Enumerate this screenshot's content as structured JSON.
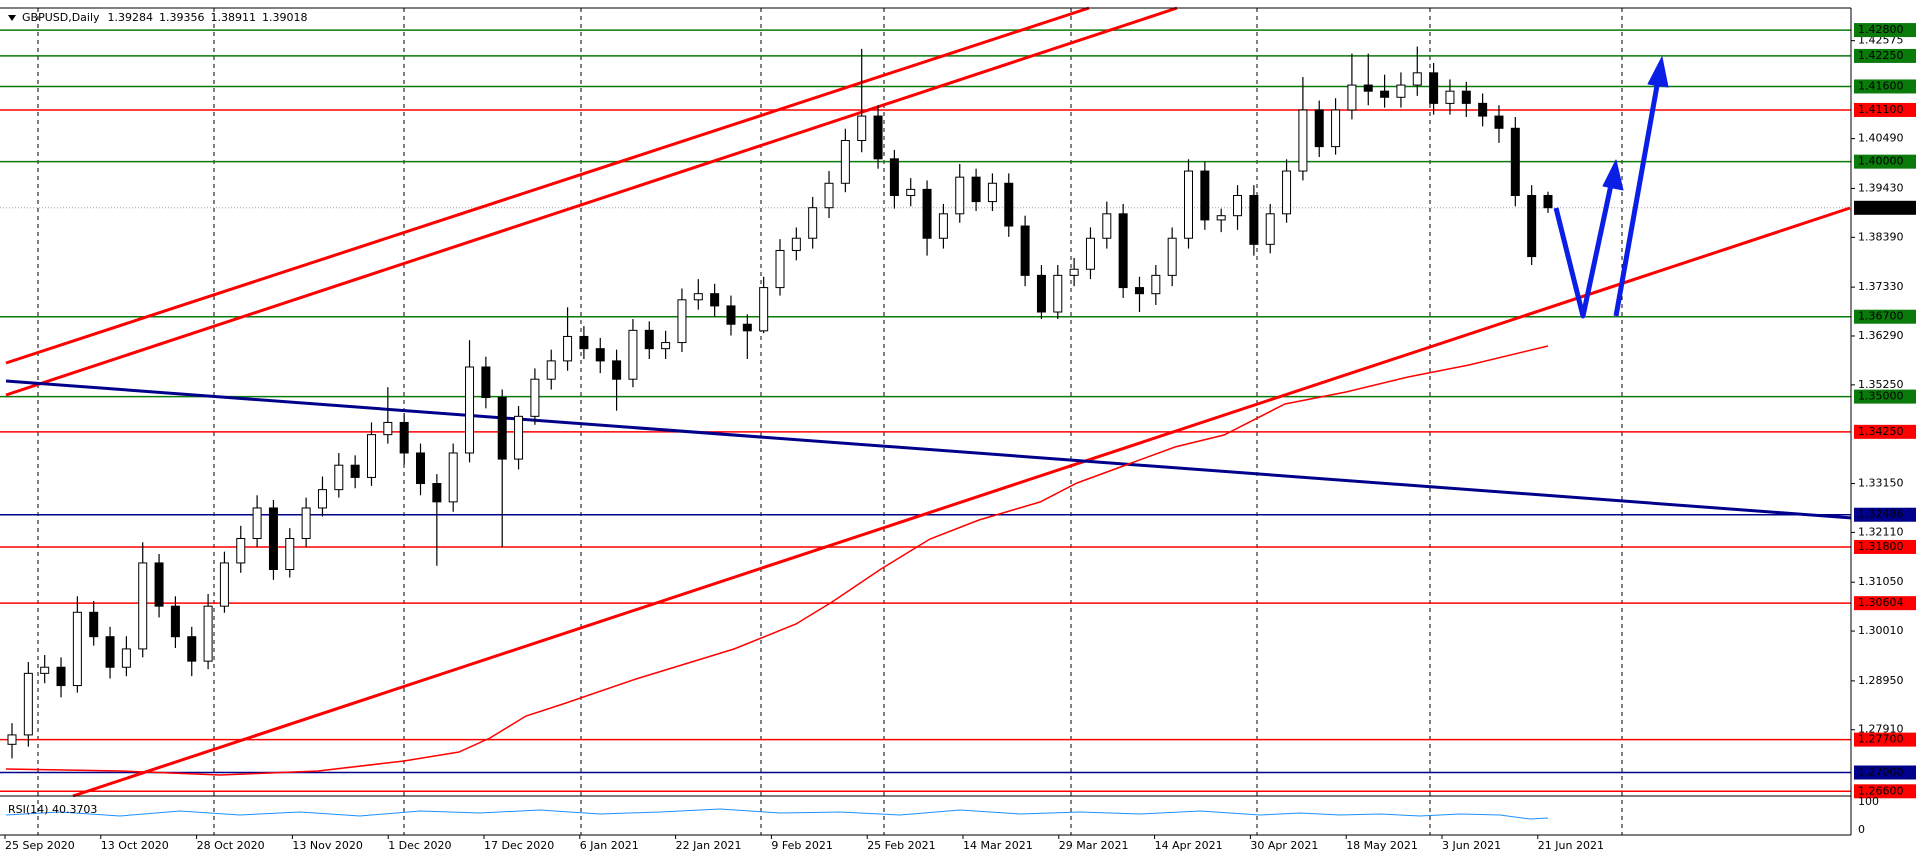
{
  "chart_data": {
    "type": "candlestick",
    "title": "GBPUSD,Daily",
    "ohlc_header": [
      1.39284,
      1.39356,
      1.38911,
      1.39018
    ],
    "xticks": [
      "25 Sep 2020",
      "13 Oct 2020",
      "28 Oct 2020",
      "13 Nov 2020",
      "1 Dec 2020",
      "17 Dec 2020",
      "6 Jan 2021",
      "22 Jan 2021",
      "9 Feb 2021",
      "25 Feb 2021",
      "14 Mar 2021",
      "29 Mar 2021",
      "14 Apr 2021",
      "30 Apr 2021",
      "18 May 2021",
      "3 Jun 2021",
      "21 Jun 2021"
    ],
    "ylim": [
      1.265,
      1.4327
    ],
    "yticks": [
      1.42575,
      {
        "value": 1.4049,
        "label": "1.40490"
      },
      {
        "value": 1.3943,
        "label": "1.39430"
      },
      {
        "value": 1.3839,
        "label": "1.38390"
      },
      {
        "value": 1.3733,
        "label": "1.37330"
      },
      {
        "value": 1.3629,
        "label": "1.36290"
      },
      {
        "value": 1.3525,
        "label": "1.35250"
      },
      {
        "value": 1.3315,
        "label": "1.33150"
      },
      {
        "value": 1.3211,
        "label": "1.32110"
      },
      {
        "value": 1.3105,
        "label": "1.31050"
      },
      {
        "value": 1.3001,
        "label": "1.30010"
      },
      {
        "value": 1.2895,
        "label": "1.28950"
      },
      {
        "value": 1.2791,
        "label": "1.27910"
      }
    ],
    "open": [
      1.276,
      1.278,
      1.2911,
      1.2924,
      1.2885,
      1.3041,
      1.2989,
      1.2924,
      1.2963,
      1.3146,
      1.3054,
      1.2989,
      1.2937,
      1.3054,
      1.3146,
      1.3198,
      1.3263,
      1.3132,
      1.3198,
      1.3263,
      1.3302,
      1.3354,
      1.3328,
      1.3419,
      1.3445,
      1.338,
      1.3315,
      1.3276,
      1.338,
      1.3563,
      1.3498,
      1.3367,
      1.3458,
      1.3537,
      1.3576,
      1.3628,
      1.3602,
      1.3576,
      1.3537,
      1.3641,
      1.3602,
      1.3615,
      1.3706,
      1.3719,
      1.3693,
      1.3654,
      1.364,
      1.3732,
      1.3811,
      1.3837,
      1.3902,
      1.3954,
      1.4045,
      1.4097,
      1.4006,
      1.3928,
      1.3941,
      1.3837,
      1.3889,
      1.3967,
      1.3915,
      1.3954,
      1.3863,
      1.3758,
      1.368,
      1.3758,
      1.3771,
      1.3837,
      1.3889,
      1.3732,
      1.3719,
      1.3758,
      1.3837,
      1.398,
      1.3876,
      1.3885,
      1.3928,
      1.3824,
      1.3889,
      1.398,
      1.411,
      1.4032,
      1.411,
      1.4163,
      1.415,
      1.4137,
      1.4163,
      1.4189,
      1.4124,
      1.415,
      1.4124,
      1.4097,
      1.4071,
      1.3928,
      1.3928
    ],
    "high": [
      1.2805,
      1.2935,
      1.295,
      1.2945,
      1.3075,
      1.3065,
      1.301,
      1.299,
      1.319,
      1.3165,
      1.3075,
      1.301,
      1.308,
      1.317,
      1.3225,
      1.329,
      1.328,
      1.322,
      1.3285,
      1.333,
      1.338,
      1.3375,
      1.3445,
      1.352,
      1.3465,
      1.34,
      1.3335,
      1.34,
      1.362,
      1.3585,
      1.3515,
      1.348,
      1.356,
      1.36,
      1.369,
      1.365,
      1.3625,
      1.36,
      1.3665,
      1.366,
      1.364,
      1.373,
      1.375,
      1.374,
      1.3715,
      1.3675,
      1.3755,
      1.3835,
      1.386,
      1.3925,
      1.398,
      1.407,
      1.424,
      1.412,
      1.4025,
      1.3965,
      1.396,
      1.391,
      1.3995,
      1.3985,
      1.3975,
      1.3975,
      1.3885,
      1.378,
      1.378,
      1.3795,
      1.386,
      1.3915,
      1.391,
      1.3755,
      1.378,
      1.386,
      1.4005,
      1.4,
      1.39,
      1.395,
      1.395,
      1.391,
      1.4005,
      1.418,
      1.413,
      1.4135,
      1.423,
      1.423,
      1.4185,
      1.419,
      1.4245,
      1.421,
      1.4175,
      1.417,
      1.4145,
      1.412,
      1.4095,
      1.395,
      1.3936
    ],
    "low": [
      1.273,
      1.2755,
      1.289,
      1.286,
      1.287,
      1.297,
      1.29,
      1.2905,
      1.2945,
      1.303,
      1.2965,
      1.2905,
      1.292,
      1.304,
      1.3125,
      1.318,
      1.311,
      1.3115,
      1.318,
      1.3245,
      1.3285,
      1.3305,
      1.331,
      1.34,
      1.3355,
      1.329,
      1.314,
      1.3255,
      1.336,
      1.3475,
      1.318,
      1.3345,
      1.344,
      1.3515,
      1.3555,
      1.358,
      1.355,
      1.347,
      1.352,
      1.358,
      1.358,
      1.3595,
      1.3685,
      1.367,
      1.363,
      1.358,
      1.3635,
      1.3715,
      1.379,
      1.3815,
      1.388,
      1.3935,
      1.402,
      1.3985,
      1.39,
      1.3905,
      1.38,
      1.3815,
      1.387,
      1.3895,
      1.3895,
      1.384,
      1.3735,
      1.3665,
      1.3665,
      1.3735,
      1.375,
      1.3815,
      1.371,
      1.368,
      1.3695,
      1.3735,
      1.3815,
      1.3855,
      1.385,
      1.3855,
      1.38,
      1.3805,
      1.387,
      1.396,
      1.401,
      1.4015,
      1.409,
      1.412,
      1.4115,
      1.4115,
      1.414,
      1.41,
      1.41,
      1.4095,
      1.4075,
      1.404,
      1.3905,
      1.378,
      1.3891
    ],
    "close": [
      1.278,
      1.2911,
      1.2924,
      1.2885,
      1.3041,
      1.2989,
      1.2924,
      1.2963,
      1.3146,
      1.3054,
      1.2989,
      1.2937,
      1.3054,
      1.3146,
      1.3198,
      1.3263,
      1.3132,
      1.3198,
      1.3263,
      1.3302,
      1.3354,
      1.3328,
      1.3419,
      1.3445,
      1.338,
      1.3315,
      1.3276,
      1.338,
      1.3563,
      1.3498,
      1.3367,
      1.3458,
      1.3537,
      1.3576,
      1.3628,
      1.3602,
      1.3576,
      1.3537,
      1.3641,
      1.3602,
      1.3615,
      1.3706,
      1.3719,
      1.3693,
      1.3654,
      1.364,
      1.3732,
      1.3811,
      1.3837,
      1.3902,
      1.3954,
      1.4045,
      1.4097,
      1.4006,
      1.3928,
      1.3941,
      1.3837,
      1.3889,
      1.3967,
      1.3915,
      1.3954,
      1.3863,
      1.3758,
      1.368,
      1.3758,
      1.3771,
      1.3837,
      1.3889,
      1.3732,
      1.3719,
      1.3758,
      1.3837,
      1.398,
      1.3876,
      1.3885,
      1.3928,
      1.3824,
      1.3889,
      1.398,
      1.411,
      1.4032,
      1.411,
      1.4163,
      1.415,
      1.4137,
      1.4163,
      1.4189,
      1.4124,
      1.415,
      1.4124,
      1.4097,
      1.4071,
      1.3928,
      1.3798,
      1.3902
    ],
    "up_color": "#ffffff",
    "down_color": "#000000",
    "levels": [
      {
        "value": 1.428,
        "label": "1.42800",
        "color": "#0a7a0a"
      },
      {
        "value": 1.4225,
        "label": "1.42250",
        "color": "#0a7a0a"
      },
      {
        "value": 1.416,
        "label": "1.41600",
        "color": "#0a7a0a"
      },
      {
        "value": 1.411,
        "label": "1.41100",
        "color": "#ff0000"
      },
      {
        "value": 1.4,
        "label": "1.40000",
        "color": "#0a7a0a"
      },
      {
        "value": 1.367,
        "label": "1.36700",
        "color": "#0a7a0a"
      },
      {
        "value": 1.35,
        "label": "1.35000",
        "color": "#0a7a0a"
      },
      {
        "value": 1.3425,
        "label": "1.34250",
        "color": "#ff0000"
      },
      {
        "value": 1.32486,
        "color": "#00008b"
      },
      {
        "value": 1.318,
        "label": "1.31800",
        "color": "#ff0000"
      },
      {
        "value": 1.30604,
        "color": "#ff0000"
      },
      {
        "value": 1.277,
        "label": "1.27700",
        "color": "#ff0000"
      },
      {
        "value": 1.27,
        "label": "1.27000",
        "color": "#00008b"
      },
      {
        "value": 1.266,
        "label": "1.26600",
        "color": "#ff0000"
      }
    ],
    "rsi": {
      "label": "RSI(14) 40.3703",
      "ticks": [
        100,
        0
      ]
    }
  }
}
